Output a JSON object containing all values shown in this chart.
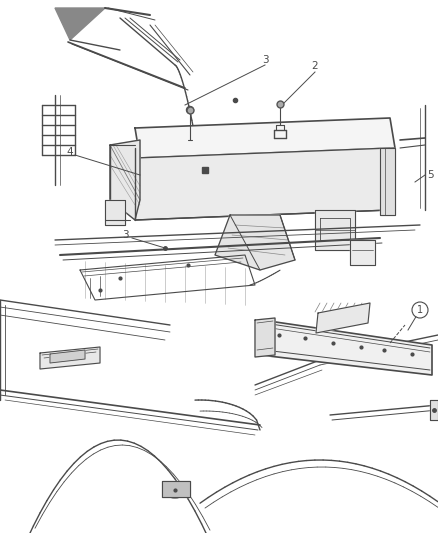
{
  "background_color": "#ffffff",
  "line_color": "#4a4a4a",
  "callout_color": "#333333",
  "fig_width": 4.38,
  "fig_height": 5.33,
  "dpi": 100,
  "top_diagram": {
    "y_min": 0.495,
    "y_max": 1.0
  },
  "bottom_diagram": {
    "y_min": 0.0,
    "y_max": 0.495
  }
}
